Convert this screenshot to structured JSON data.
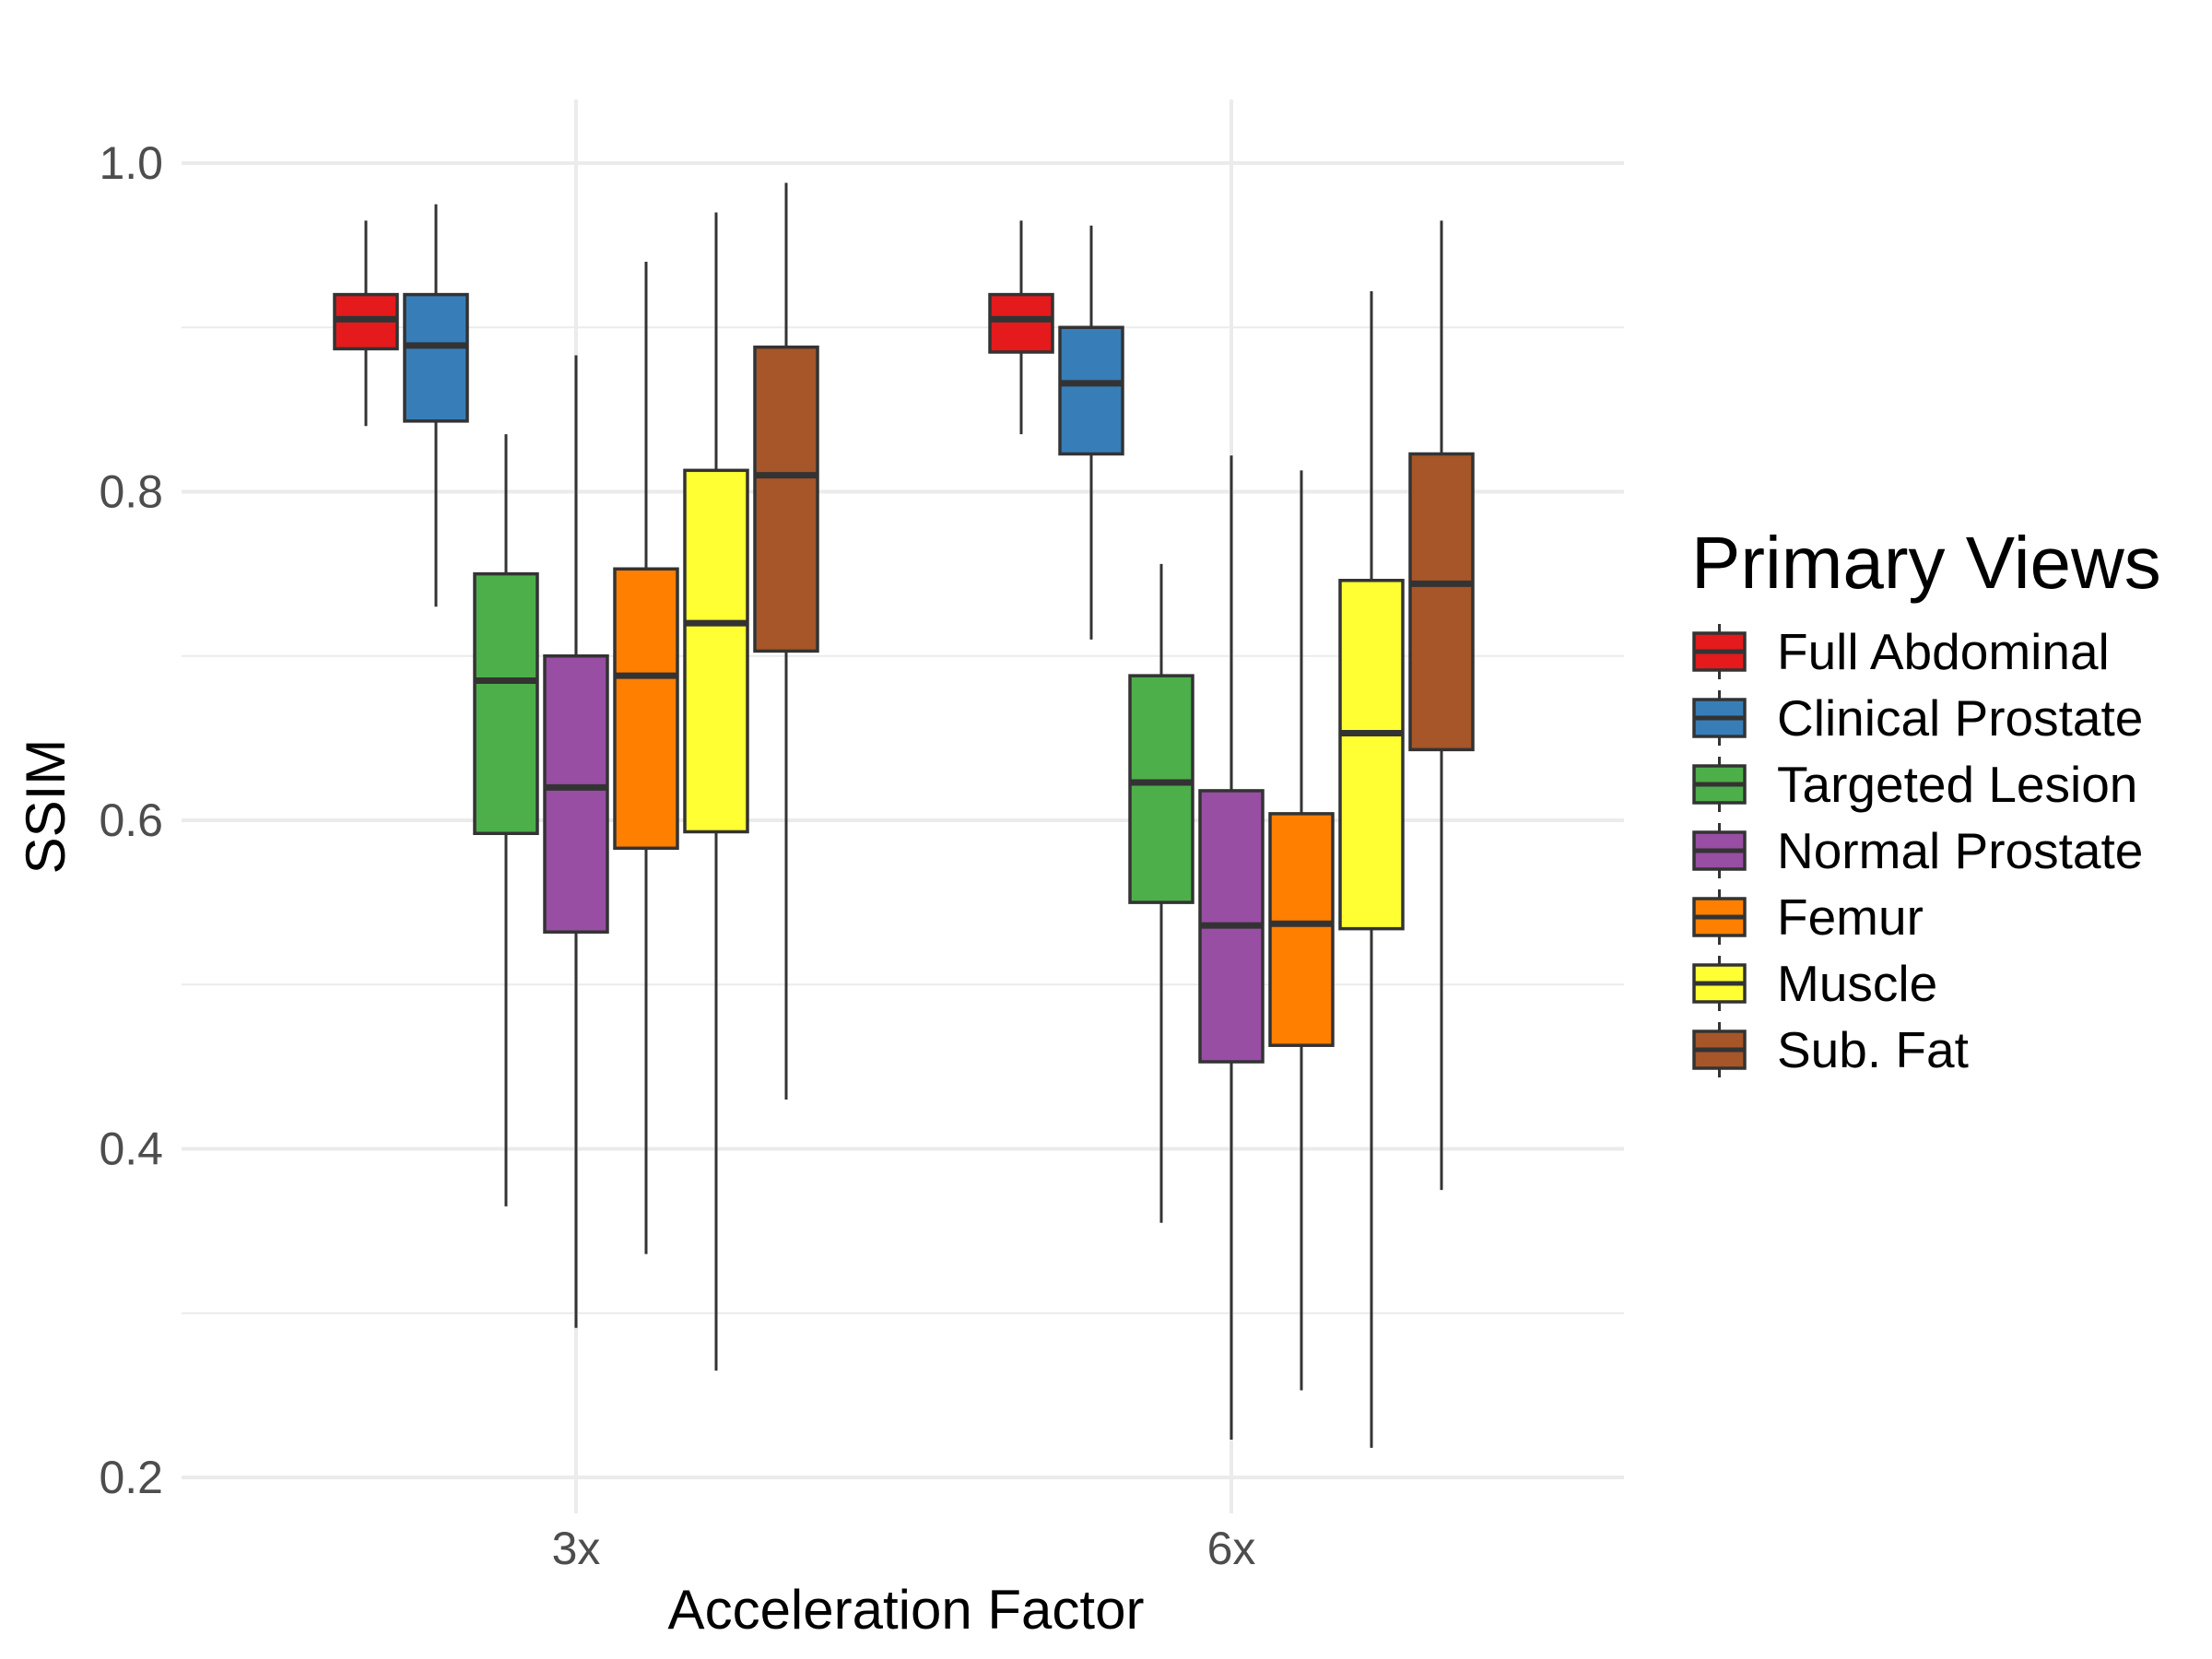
{
  "chart_data": {
    "type": "box",
    "xlabel": "Acceleration Factor",
    "ylabel": "SSIM",
    "ylim": [
      0.19,
      1.04
    ],
    "yticks": [
      0.2,
      0.4,
      0.6,
      0.8,
      1.0
    ],
    "ytick_labels": [
      "0.2",
      "0.4",
      "0.6",
      "0.8",
      "1.0"
    ],
    "categories": [
      "3x",
      "6x"
    ],
    "grid": true,
    "legend": {
      "title": "Primary Views",
      "position": "right"
    },
    "series": [
      {
        "name": "Full Abdominal",
        "color": "#E41A1C",
        "boxes": [
          {
            "min": 0.84,
            "q1": 0.887,
            "median": 0.905,
            "q3": 0.92,
            "max": 0.965
          },
          {
            "min": 0.835,
            "q1": 0.885,
            "median": 0.905,
            "q3": 0.92,
            "max": 0.965
          }
        ]
      },
      {
        "name": "Clinical Prostate",
        "color": "#377EB8",
        "boxes": [
          {
            "min": 0.73,
            "q1": 0.843,
            "median": 0.889,
            "q3": 0.92,
            "max": 0.975
          },
          {
            "min": 0.71,
            "q1": 0.823,
            "median": 0.866,
            "q3": 0.9,
            "max": 0.962
          }
        ]
      },
      {
        "name": "Targeted Lesion",
        "color": "#4DAF4A",
        "boxes": [
          {
            "min": 0.365,
            "q1": 0.592,
            "median": 0.685,
            "q3": 0.75,
            "max": 0.835
          },
          {
            "min": 0.355,
            "q1": 0.55,
            "median": 0.623,
            "q3": 0.688,
            "max": 0.756
          }
        ]
      },
      {
        "name": "Normal Prostate",
        "color": "#984EA3",
        "boxes": [
          {
            "min": 0.291,
            "q1": 0.532,
            "median": 0.62,
            "q3": 0.7,
            "max": 0.883
          },
          {
            "min": 0.223,
            "q1": 0.453,
            "median": 0.536,
            "q3": 0.618,
            "max": 0.822
          }
        ]
      },
      {
        "name": "Femur",
        "color": "#FF7F00",
        "boxes": [
          {
            "min": 0.336,
            "q1": 0.583,
            "median": 0.688,
            "q3": 0.753,
            "max": 0.94
          },
          {
            "min": 0.253,
            "q1": 0.463,
            "median": 0.537,
            "q3": 0.604,
            "max": 0.813
          }
        ]
      },
      {
        "name": "Muscle",
        "color": "#FFFF33",
        "boxes": [
          {
            "min": 0.265,
            "q1": 0.593,
            "median": 0.72,
            "q3": 0.813,
            "max": 0.97
          },
          {
            "min": 0.218,
            "q1": 0.534,
            "median": 0.653,
            "q3": 0.746,
            "max": 0.922
          }
        ]
      },
      {
        "name": "Sub. Fat",
        "color": "#A65628",
        "boxes": [
          {
            "min": 0.43,
            "q1": 0.703,
            "median": 0.81,
            "q3": 0.888,
            "max": 0.988
          },
          {
            "min": 0.375,
            "q1": 0.643,
            "median": 0.744,
            "q3": 0.823,
            "max": 0.965
          }
        ]
      }
    ]
  }
}
